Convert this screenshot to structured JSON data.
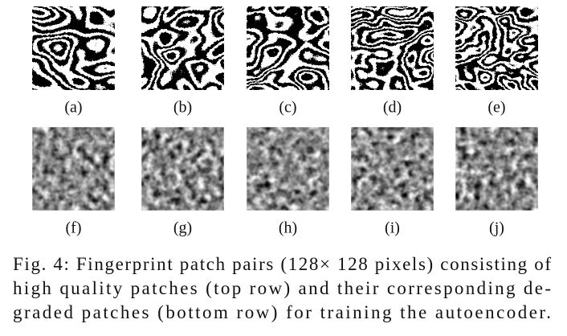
{
  "figure": {
    "panels": [
      {
        "label": "(a)"
      },
      {
        "label": "(b)"
      },
      {
        "label": "(c)"
      },
      {
        "label": "(d)"
      },
      {
        "label": "(e)"
      },
      {
        "label": "(f)"
      },
      {
        "label": "(g)"
      },
      {
        "label": "(h)"
      },
      {
        "label": "(i)"
      },
      {
        "label": "(j)"
      }
    ],
    "caption": [
      "Fig. 4: Fingerprint patch pairs (128× 128 pixels) consisting of",
      "high quality patches (top row) and their corresponding de-",
      "graded patches (bottom row) for training the autoencoder."
    ]
  }
}
